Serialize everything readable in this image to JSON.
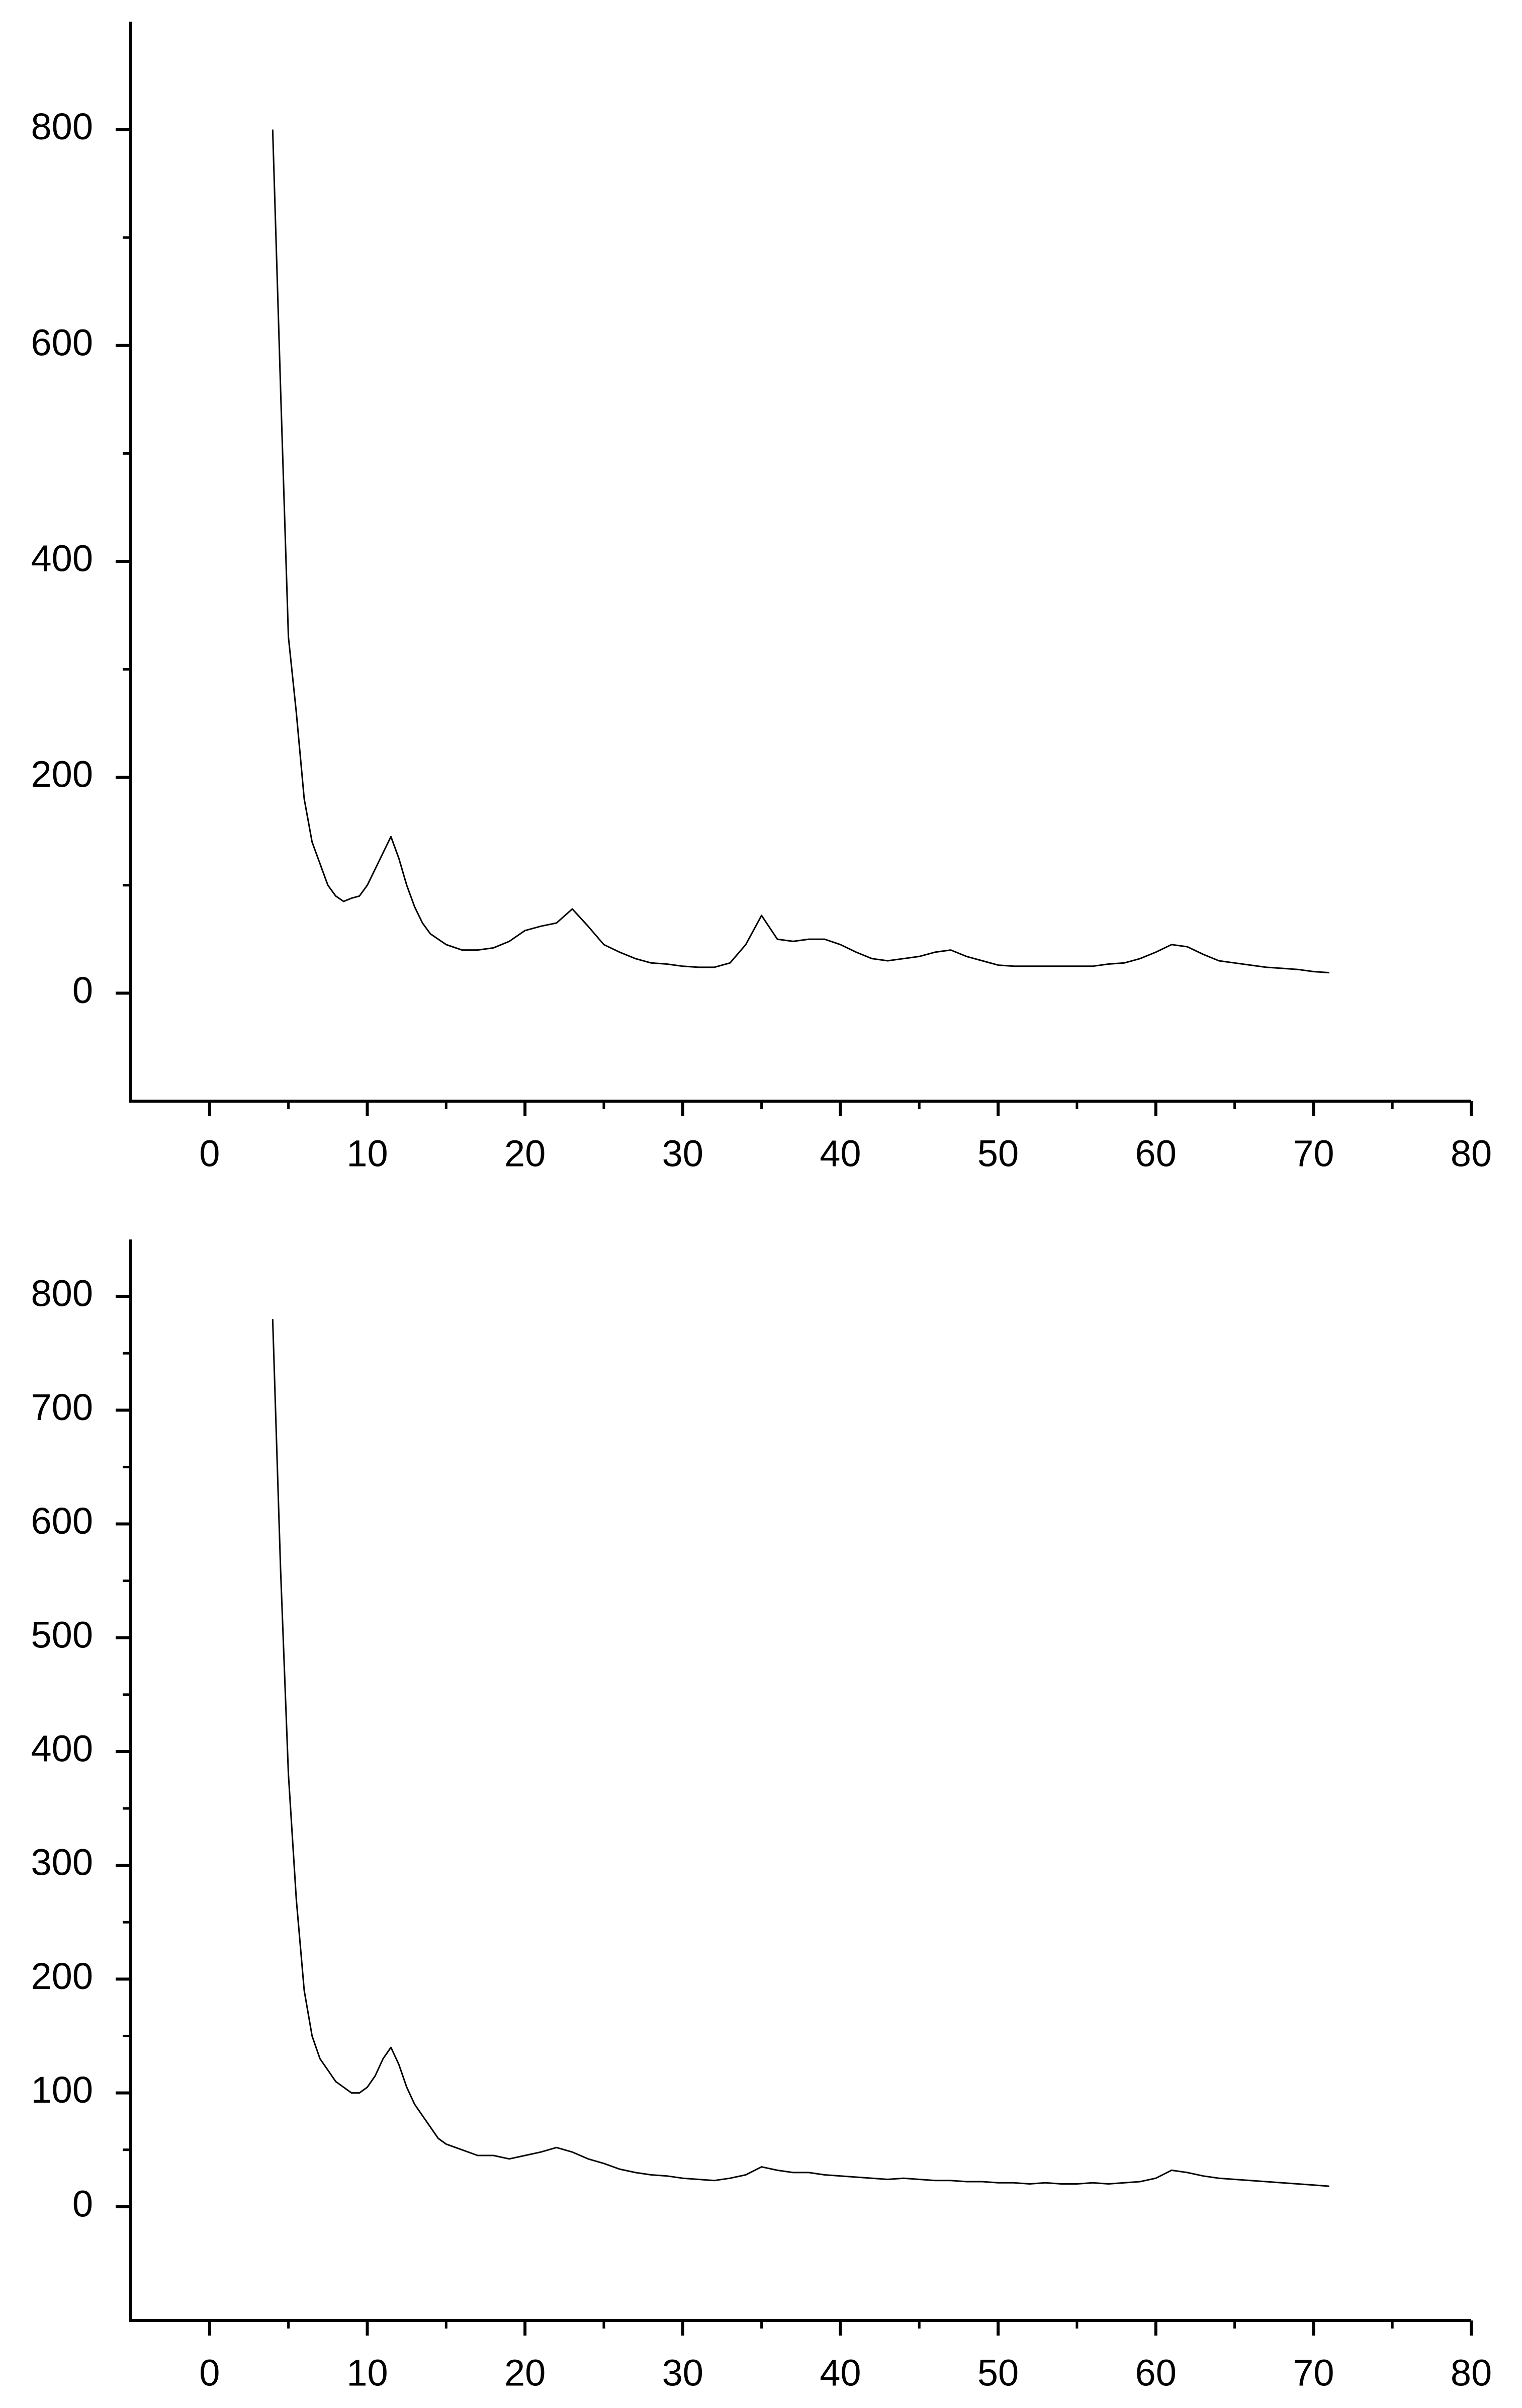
{
  "chart_data": [
    {
      "type": "line",
      "x": [
        4,
        4.5,
        5,
        5.5,
        6,
        6.5,
        7,
        7.5,
        8,
        8.5,
        9,
        9.5,
        10,
        10.5,
        11,
        11.5,
        12,
        12.5,
        13,
        13.5,
        14,
        14.5,
        15,
        16,
        17,
        18,
        19,
        20,
        21,
        22,
        23,
        24,
        25,
        26,
        27,
        28,
        29,
        30,
        31,
        32,
        33,
        34,
        35,
        36,
        37,
        38,
        39,
        40,
        41,
        42,
        43,
        44,
        45,
        46,
        47,
        48,
        49,
        50,
        51,
        52,
        53,
        54,
        55,
        56,
        57,
        58,
        59,
        60,
        61,
        62,
        63,
        64,
        65,
        66,
        67,
        68,
        69,
        70,
        71
      ],
      "series": [
        {
          "color": "#000000",
          "values": [
            800,
            560,
            330,
            260,
            180,
            140,
            120,
            100,
            90,
            85,
            88,
            90,
            100,
            115,
            130,
            145,
            125,
            100,
            80,
            65,
            55,
            50,
            45,
            40,
            40,
            42,
            48,
            58,
            62,
            65,
            78,
            62,
            45,
            38,
            32,
            28,
            27,
            25,
            24,
            24,
            28,
            45,
            72,
            50,
            48,
            50,
            50,
            45,
            38,
            32,
            30,
            32,
            34,
            38,
            40,
            34,
            30,
            26,
            25,
            25,
            25,
            25,
            25,
            25,
            27,
            28,
            32,
            38,
            45,
            43,
            36,
            30,
            28,
            26,
            24,
            23,
            22,
            20,
            19
          ]
        }
      ],
      "xlim": [
        -5,
        80
      ],
      "ylim": [
        -100,
        900
      ],
      "xticks": [
        0,
        10,
        20,
        30,
        40,
        50,
        60,
        70,
        80
      ],
      "yticks": [
        0,
        200,
        400,
        600,
        800
      ],
      "xminor_ticks": [
        5,
        15,
        25,
        35,
        45,
        55,
        65,
        75
      ],
      "yminor_ticks": [
        100,
        300,
        500,
        700
      ]
    },
    {
      "type": "line",
      "x": [
        4,
        4.5,
        5,
        5.5,
        6,
        6.5,
        7,
        7.5,
        8,
        8.5,
        9,
        9.5,
        10,
        10.5,
        11,
        11.5,
        12,
        12.5,
        13,
        13.5,
        14,
        14.5,
        15,
        16,
        17,
        18,
        19,
        20,
        21,
        22,
        23,
        24,
        25,
        26,
        27,
        28,
        29,
        30,
        31,
        32,
        33,
        34,
        35,
        36,
        37,
        38,
        39,
        40,
        41,
        42,
        43,
        44,
        45,
        46,
        47,
        48,
        49,
        50,
        51,
        52,
        53,
        54,
        55,
        56,
        57,
        58,
        59,
        60,
        61,
        62,
        63,
        64,
        65,
        66,
        67,
        68,
        69,
        70,
        71
      ],
      "series": [
        {
          "color": "#000000",
          "values": [
            780,
            560,
            380,
            270,
            190,
            150,
            130,
            120,
            110,
            105,
            100,
            100,
            105,
            115,
            130,
            140,
            125,
            105,
            90,
            80,
            70,
            60,
            55,
            50,
            45,
            45,
            42,
            45,
            48,
            52,
            48,
            42,
            38,
            33,
            30,
            28,
            27,
            25,
            24,
            23,
            25,
            28,
            35,
            32,
            30,
            30,
            28,
            27,
            26,
            25,
            24,
            25,
            24,
            23,
            23,
            22,
            22,
            21,
            21,
            20,
            21,
            20,
            20,
            21,
            20,
            21,
            22,
            25,
            32,
            30,
            27,
            25,
            24,
            23,
            22,
            21,
            20,
            19,
            18
          ]
        }
      ],
      "xlim": [
        -5,
        80
      ],
      "ylim": [
        -100,
        850
      ],
      "xticks": [
        0,
        10,
        20,
        30,
        40,
        50,
        60,
        70,
        80
      ],
      "yticks": [
        0,
        100,
        200,
        300,
        400,
        500,
        600,
        700,
        800
      ],
      "xminor_ticks": [
        5,
        15,
        25,
        35,
        45,
        55,
        65,
        75
      ],
      "yminor_ticks": [
        50,
        150,
        250,
        350,
        450,
        550,
        650,
        750
      ]
    }
  ]
}
